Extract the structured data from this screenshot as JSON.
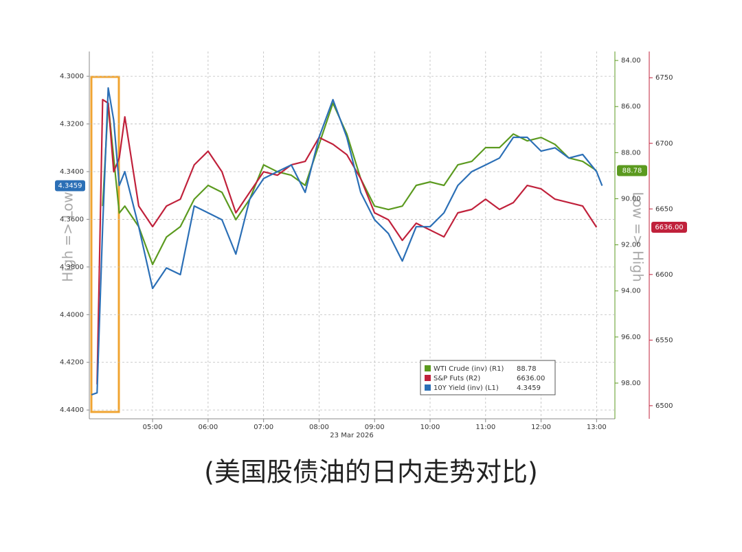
{
  "chart_data": {
    "type": "line",
    "xlabel": "23 Mar 2026",
    "y_label": "High => Low",
    "y2_label": "Low => High",
    "grid": true,
    "x": [
      3.9,
      4.0,
      4.1,
      4.2,
      4.3,
      4.4,
      4.5,
      4.75,
      5.0,
      5.25,
      5.5,
      5.75,
      6.0,
      6.25,
      6.5,
      6.75,
      7.0,
      7.25,
      7.5,
      7.75,
      8.0,
      8.25,
      8.5,
      8.75,
      9.0,
      9.25,
      9.5,
      9.75,
      10.0,
      10.25,
      10.5,
      10.75,
      11.0,
      11.25,
      11.5,
      11.75,
      12.0,
      12.25,
      12.5,
      12.75,
      13.0,
      13.1
    ],
    "xlim": [
      3.86,
      13.33
    ],
    "xticks": [
      {
        "value": 5,
        "label": "05:00"
      },
      {
        "value": 6,
        "label": "06:00"
      },
      {
        "value": 7,
        "label": "07:00"
      },
      {
        "value": 8,
        "label": "08:00"
      },
      {
        "value": 9,
        "label": "09:00"
      },
      {
        "value": 10,
        "label": "10:00"
      },
      {
        "value": 11,
        "label": "11:00"
      },
      {
        "value": 12,
        "label": "12:00"
      },
      {
        "value": 13,
        "label": "13:00"
      }
    ],
    "ylim": [
      4.4437,
      4.2896
    ],
    "yticks": [
      {
        "value": 4.3,
        "label": "4.3000"
      },
      {
        "value": 4.32,
        "label": "4.3200"
      },
      {
        "value": 4.34,
        "label": "4.3400"
      },
      {
        "value": 4.36,
        "label": "4.3600"
      },
      {
        "value": 4.38,
        "label": "4.3800"
      },
      {
        "value": 4.4,
        "label": "4.4000"
      },
      {
        "value": 4.42,
        "label": "4.4200"
      },
      {
        "value": 4.44,
        "label": "4.4400"
      }
    ],
    "y2lim": [
      99.55,
      83.61
    ],
    "y2ticks": [
      {
        "value": 84,
        "label": "84.00"
      },
      {
        "value": 86,
        "label": "86.00"
      },
      {
        "value": 88,
        "label": "88.00"
      },
      {
        "value": 90,
        "label": "90.00"
      },
      {
        "value": 92,
        "label": "92.00"
      },
      {
        "value": 94,
        "label": "94.00"
      },
      {
        "value": 96,
        "label": "96.00"
      },
      {
        "value": 98,
        "label": "98.00"
      }
    ],
    "y3lim": [
      6490,
      6770
    ],
    "y3ticks": [
      6500,
      6550,
      6600,
      6650,
      6700,
      6750
    ],
    "series": [
      {
        "name": "WTI Crude (inv) (R1)",
        "color": "#5b9a1f",
        "axis": "y2",
        "values": [
          null,
          null,
          90.32,
          85.85,
          88.23,
          90.62,
          90.32,
          91.21,
          92.85,
          91.66,
          91.21,
          90.02,
          89.42,
          89.72,
          90.91,
          90.02,
          88.53,
          88.83,
          88.98,
          89.42,
          87.64,
          85.85,
          87.19,
          89.13,
          90.32,
          90.47,
          90.32,
          89.42,
          89.27,
          89.42,
          88.53,
          88.38,
          87.78,
          87.78,
          87.19,
          87.49,
          87.34,
          87.64,
          88.23,
          88.38,
          88.78,
          null
        ],
        "value_labels": [
          null,
          null,
          null,
          null,
          null,
          null,
          null,
          null,
          null,
          null,
          null,
          null,
          null,
          null,
          null,
          null,
          null,
          null,
          null,
          null,
          null,
          null,
          null,
          null,
          null,
          null,
          null,
          null,
          null,
          null,
          null,
          null,
          null,
          null,
          null,
          null,
          null,
          null,
          null,
          null,
          "88.78",
          null
        ]
      },
      {
        "name": "S&P Futs (R2)",
        "color": "#c0213b",
        "axis": "y3",
        "values": [
          null,
          6516.2,
          6733.3,
          6730.6,
          6678.3,
          6688.8,
          6720.2,
          6652.2,
          6636.5,
          6652.2,
          6657.4,
          6683.6,
          6694.0,
          6678.3,
          6647.0,
          6662.7,
          6678.3,
          6675.7,
          6683.6,
          6686.2,
          6704.5,
          6699.3,
          6691.4,
          6673.1,
          6647.0,
          6641.7,
          6626.0,
          6639.1,
          6633.9,
          6628.7,
          6647.0,
          6649.6,
          6657.4,
          6649.6,
          6654.8,
          6667.9,
          6665.3,
          6657.4,
          6654.8,
          6652.2,
          6636.0,
          null
        ],
        "value_labels": [
          null,
          null,
          null,
          null,
          null,
          null,
          null,
          null,
          null,
          null,
          null,
          null,
          null,
          null,
          null,
          null,
          null,
          null,
          null,
          null,
          null,
          null,
          null,
          null,
          null,
          null,
          null,
          null,
          null,
          null,
          null,
          null,
          null,
          null,
          null,
          null,
          null,
          null,
          null,
          null,
          "6636.00",
          null
        ]
      },
      {
        "name": "10Y Yield (inv) (L1)",
        "color": "#2b6fb6",
        "axis": "y",
        "values": [
          4.4336,
          4.4328,
          4.3631,
          4.3049,
          4.3184,
          4.3458,
          4.34,
          4.3631,
          4.389,
          4.3804,
          4.3832,
          4.3544,
          4.3573,
          4.3602,
          4.3746,
          4.3516,
          4.3429,
          4.34,
          4.3372,
          4.3487,
          4.3256,
          4.3098,
          4.3256,
          4.3487,
          4.3602,
          4.366,
          4.3775,
          4.3631,
          4.3631,
          4.3573,
          4.3458,
          4.34,
          4.3372,
          4.3343,
          4.3256,
          4.3256,
          4.3314,
          4.33,
          4.3343,
          4.3328,
          4.34,
          4.3459
        ],
        "value_labels": [
          null,
          null,
          null,
          null,
          null,
          null,
          null,
          null,
          null,
          null,
          null,
          null,
          null,
          null,
          null,
          null,
          null,
          null,
          null,
          null,
          null,
          null,
          null,
          null,
          null,
          null,
          null,
          null,
          null,
          null,
          null,
          null,
          null,
          null,
          null,
          null,
          null,
          null,
          null,
          null,
          null,
          "4.3459"
        ]
      }
    ]
  },
  "caption": "(美国股债油的日内走势对比)"
}
